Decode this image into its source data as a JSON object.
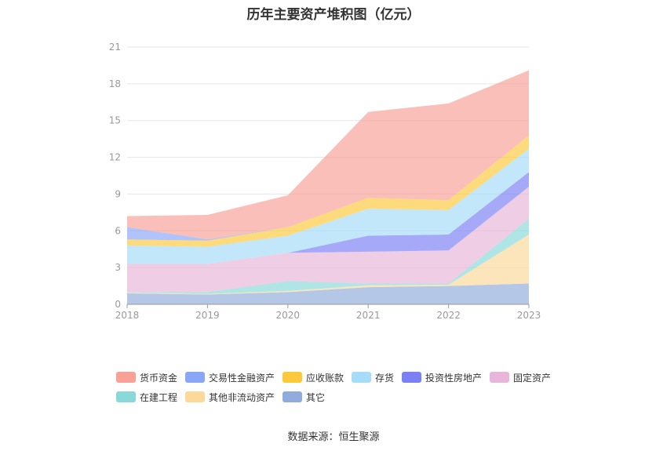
{
  "title": "历年主要资产堆积图（亿元）",
  "source": "数据来源：恒生聚源",
  "chart_data": {
    "type": "area",
    "stacked": true,
    "title": "历年主要资产堆积图（亿元）",
    "xlabel": "",
    "ylabel": "",
    "x": [
      "2018",
      "2019",
      "2020",
      "2021",
      "2022",
      "2023"
    ],
    "ylim": [
      0,
      21
    ],
    "yticks": [
      0,
      3,
      6,
      9,
      12,
      15,
      18,
      21
    ],
    "grid": true,
    "legend_position": "bottom",
    "series": [
      {
        "name": "其它",
        "color": "#91acdc",
        "values": [
          0.9,
          0.8,
          1.0,
          1.4,
          1.5,
          1.7
        ]
      },
      {
        "name": "其他非流动资产",
        "color": "#fbd99a",
        "values": [
          0.05,
          0.05,
          0.1,
          0.15,
          0.1,
          4.0
        ]
      },
      {
        "name": "在建工程",
        "color": "#8ad8da",
        "values": [
          0.05,
          0.15,
          0.8,
          0.15,
          0.1,
          1.3
        ]
      },
      {
        "name": "固定资产",
        "color": "#e8b6d9",
        "values": [
          2.3,
          2.3,
          2.3,
          2.6,
          2.7,
          2.6
        ]
      },
      {
        "name": "投资性房地产",
        "color": "#7b80f5",
        "values": [
          0.0,
          0.0,
          0.0,
          1.3,
          1.3,
          1.2
        ]
      },
      {
        "name": "存货",
        "color": "#a6dcf8",
        "values": [
          1.5,
          1.4,
          1.4,
          2.2,
          2.0,
          1.9
        ]
      },
      {
        "name": "应收账款",
        "color": "#fcc93c",
        "values": [
          0.5,
          0.5,
          0.7,
          0.9,
          0.8,
          1.1
        ]
      },
      {
        "name": "交易性金融资产",
        "color": "#8aa7f7",
        "values": [
          1.0,
          0.1,
          0.0,
          0.0,
          0.0,
          0.0
        ]
      },
      {
        "name": "货币资金",
        "color": "#f8a196",
        "values": [
          0.9,
          2.0,
          2.6,
          7.0,
          7.9,
          5.3
        ]
      }
    ]
  },
  "legend": {
    "items": [
      {
        "name": "货币资金",
        "color": "#f8a196"
      },
      {
        "name": "交易性金融资产",
        "color": "#8aa7f7"
      },
      {
        "name": "应收账款",
        "color": "#fcc93c"
      },
      {
        "name": "存货",
        "color": "#a6dcf8"
      },
      {
        "name": "投资性房地产",
        "color": "#7b80f5"
      },
      {
        "name": "固定资产",
        "color": "#e8b6d9"
      },
      {
        "name": "在建工程",
        "color": "#8ad8da"
      },
      {
        "name": "其他非流动资产",
        "color": "#fbd99a"
      },
      {
        "name": "其它",
        "color": "#91acdc"
      }
    ]
  }
}
